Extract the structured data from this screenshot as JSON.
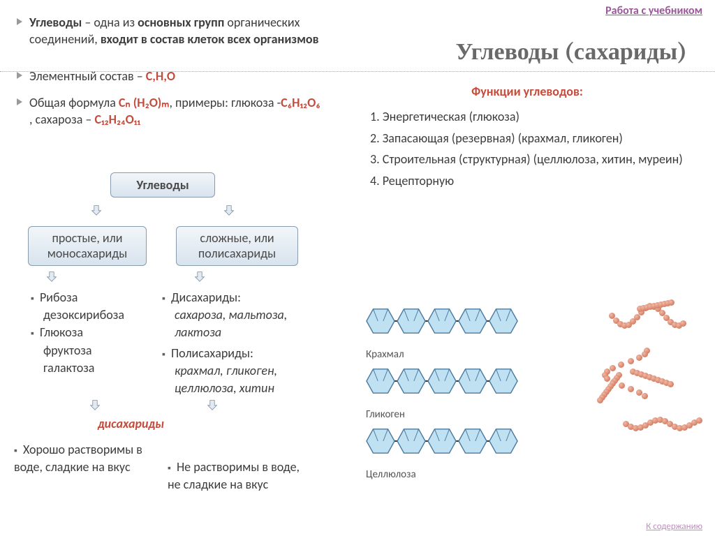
{
  "links": {
    "top": "Работа с учебником",
    "bottom": "К содержанию"
  },
  "title": "Углеводы (сахариды)",
  "definition": {
    "term": "Углеводы",
    "text1": " – одна из ",
    "bold1": "основных групп",
    "text2": " органических соединений, ",
    "bold2": "входит в состав клеток всех организмов"
  },
  "elemental": {
    "label": "Элементный состав – ",
    "value": "C,H,O"
  },
  "formula": {
    "label": "Общая формула ",
    "main": "Cₙ (H₂O)ₘ",
    "suffix": ", примеры: глюкоза -",
    "glucose": "C₆H₁₂O₆",
    "mid": " , сахароза – ",
    "sucrose": "C₁₂H₂₄O₁₁"
  },
  "functions": {
    "title": "Функции углеводов:",
    "items": [
      "1. Энергетическая (глюкоза)",
      "2. Запасающая (резервная) (крахмал, гликоген)",
      "3. Строительная (структурная) (целлюлоза, хитин, муреин)",
      "4. Рецепторную"
    ]
  },
  "diagram": {
    "root": "Углеводы",
    "left": "простые, или моносахариды",
    "right": "сложные, или полисахариды",
    "mono_line1": "Рибоза",
    "mono_line2": "дезоксирибоза",
    "mono_line3": "Глюкоза",
    "mono_line4": "фруктоза",
    "mono_line5": "галактоза",
    "poly_di_label": "Дисахариды:",
    "poly_di_items": "сахароза, мальтоза, лактоза",
    "poly_ps_label": "Полисахариды:",
    "poly_ps_items": "крахмал, гликоген, целлюлоза, хитин",
    "disacch_center": "дисахариды",
    "soluble": "Хорошо растворимы в воде, сладкие на вкус",
    "insoluble": "Не растворимы в воде,\nне сладкие на вкус"
  },
  "chains": {
    "labels": [
      "Крахмал",
      "Гликоген",
      "Целлюлоза"
    ],
    "hex_fill": "#bfe1f2",
    "hex_stroke": "#4a7aa0",
    "counts": [
      5,
      5,
      5
    ]
  },
  "colors": {
    "red": "#c54c3c",
    "purple": "#9a5799",
    "box_border": "#8a9bb0",
    "bead": "#c7664a"
  },
  "beads": {
    "structures": [
      {
        "ox": 40,
        "oy": 0,
        "shape": "curve"
      },
      {
        "ox": 10,
        "oy": 70,
        "shape": "branch"
      },
      {
        "ox": 60,
        "oy": 155,
        "shape": "line"
      }
    ]
  }
}
